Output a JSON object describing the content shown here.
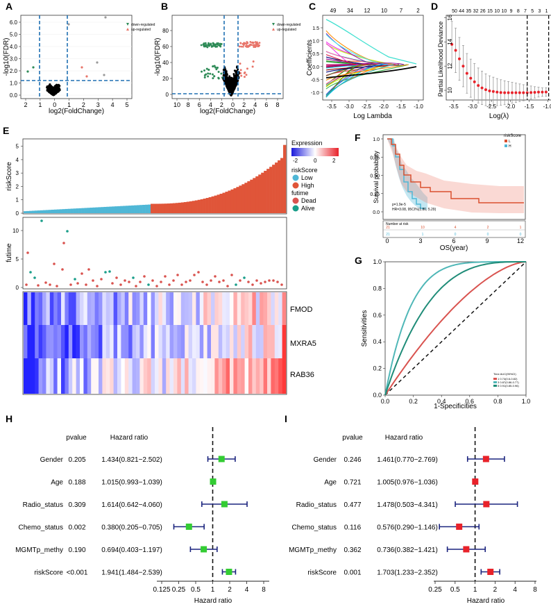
{
  "panels": {
    "A": {
      "label": "A",
      "xlabel": "log2(FoldChange)",
      "ylabel": "-log10(FDR)",
      "xticks": [
        "2",
        "1",
        "0",
        "1",
        "2",
        "3",
        "4",
        "5"
      ],
      "yticks": [
        "0.0",
        "1.0",
        "2.0",
        "3.0",
        "4.0",
        "5.0",
        "6.0"
      ],
      "legend": [
        "down-regulated",
        "up-regulated"
      ],
      "colors": {
        "down": "#2e8b57",
        "up": "#e8756a",
        "ns": "#000000"
      }
    },
    "B": {
      "label": "B",
      "xlabel": "log2(FoldChange)",
      "ylabel": "-log10(FDR)",
      "xticks": [
        "10",
        "8",
        "6",
        "4",
        "2",
        "0",
        "2",
        "4",
        "6",
        "8"
      ],
      "yticks": [
        "0",
        "20",
        "40",
        "60",
        "80"
      ],
      "legend": [
        "down-regulated",
        "up-regulated"
      ]
    },
    "C": {
      "label": "C",
      "xlabel": "Log Lambda",
      "ylabel": "Coefficients",
      "top_ticks": [
        "49",
        "34",
        "12",
        "10",
        "7",
        "2"
      ],
      "xticks": [
        "-3.5",
        "-3.0",
        "-2.5",
        "-2.0",
        "-1.5",
        "-1.0"
      ],
      "yticks": [
        "-1.0",
        "-0.5",
        "0.0",
        "0.5",
        "1.0",
        "1.5"
      ]
    },
    "D": {
      "label": "D",
      "xlabel": "Log(λ)",
      "ylabel": "Partial Likelihood Deviance",
      "top_ticks": [
        "50",
        "44",
        "35",
        "32",
        "26",
        "15",
        "10",
        "10",
        "9",
        "8",
        "7",
        "5",
        "3",
        "1"
      ],
      "xticks": [
        "-3.5",
        "-3.0",
        "-2.5",
        "-2.0",
        "-1.5",
        "-1.0"
      ],
      "yticks": [
        "10",
        "12",
        "14",
        "16"
      ],
      "chart_data": {
        "type": "scatter",
        "x": [
          -3.55,
          -3.45,
          -3.35,
          -3.25,
          -3.15,
          -3.05,
          -2.95,
          -2.85,
          -2.75,
          -2.65,
          -2.55,
          -2.45,
          -2.35,
          -2.25,
          -2.15,
          -2.05,
          -1.95,
          -1.85,
          -1.75,
          -1.65,
          -1.55,
          -1.45,
          -1.35,
          -1.25,
          -1.15,
          -1.05
        ],
        "y": [
          13.8,
          13.3,
          12.6,
          12.0,
          11.4,
          11.0,
          10.7,
          10.4,
          10.2,
          10.05,
          9.95,
          9.9,
          9.85,
          9.82,
          9.8,
          9.8,
          9.8,
          9.8,
          9.8,
          9.8,
          9.8,
          9.82,
          9.83,
          9.85,
          9.85,
          9.86
        ],
        "ylim": [
          9.2,
          16.2
        ],
        "xlim": [
          -3.7,
          -0.9
        ],
        "vlines": [
          -1.55,
          -0.98
        ]
      }
    },
    "E": {
      "label": "E",
      "risk_ylabel": "riskScore",
      "risk_yticks": [
        "0",
        "1",
        "2",
        "3",
        "4",
        "5"
      ],
      "fut_ylabel": "futime",
      "fut_yticks": [
        "0",
        "5",
        "10"
      ],
      "legend_expression_title": "Expression",
      "legend_expression_ticks": [
        "-2",
        "0",
        "2"
      ],
      "legend_risk_title": "riskScore",
      "legend_risk_items": [
        "Low",
        "High"
      ],
      "legend_fut_title": "futime",
      "legend_fut_items": [
        "Dead",
        "Alive"
      ],
      "genes": [
        "FMOD",
        "MXRA5",
        "RAB36"
      ],
      "colors": {
        "low": "#4fb7d6",
        "high": "#e05539",
        "dead": "#d9534f",
        "alive": "#1a9e8a"
      }
    },
    "F": {
      "label": "F",
      "xlabel": "OS(year)",
      "ylabel": "Survival probability",
      "legend_title": "riskScore",
      "legend_items": [
        "L",
        "H"
      ],
      "pvalue_text": "p=1.9e-5",
      "hr_text": "HR=3.08, 95CI%(1.80, 5.29)",
      "risk_table_title": "Number at risk",
      "risk_numbers_low": [
        "21",
        "10",
        "4",
        "2",
        "1"
      ],
      "risk_numbers_high": [
        "21",
        "1",
        "0",
        "0",
        "0"
      ],
      "xticks": [
        "0",
        "3",
        "6",
        "9",
        "12"
      ],
      "yticks": [
        "0.0",
        "0.25",
        "0.50",
        "0.75",
        "1.0"
      ]
    },
    "G": {
      "label": "G",
      "xlabel": "1-Specificities",
      "ylabel": "Sensitivities",
      "xticks": [
        "0.0",
        "0.2",
        "0.4",
        "0.6",
        "0.8",
        "1.0"
      ],
      "yticks": [
        "0.0",
        "0.2",
        "0.4",
        "0.6",
        "0.8",
        "1.0"
      ],
      "legend_title": "Time AUC(95%CI)",
      "legend_items": [
        "1 0.74(0.6-0.82)",
        "3 0.87(0.86-0.77)",
        "5 0.91(0.85-0.96)"
      ],
      "chart_data": {
        "type": "line",
        "series": [
          {
            "name": "1-year",
            "color": "#d9534f",
            "k": 1.6
          },
          {
            "name": "3-year",
            "color": "#4fb7b7",
            "k": 5.5
          },
          {
            "name": "5-year",
            "color": "#1f8c78",
            "k": 3.2
          }
        ],
        "xlim": [
          0,
          1
        ],
        "ylim": [
          0,
          1
        ]
      }
    },
    "H": {
      "label": "H",
      "header_pvalue": "pvalue",
      "header_hr": "Hazard ratio",
      "xlabel": "Hazard ratio",
      "xticks": [
        "0.125",
        "0.25",
        "0.5",
        "1",
        "2",
        "4",
        "8"
      ],
      "chart_data": {
        "type": "forest",
        "rows": [
          {
            "name": "Gender",
            "pvalue": "0.205",
            "hr_text": "1.434(0.821−2.502)",
            "hr": 1.434,
            "lo": 0.821,
            "hi": 2.502
          },
          {
            "name": "Age",
            "pvalue": "0.188",
            "hr_text": "1.015(0.993−1.039)",
            "hr": 1.015,
            "lo": 0.993,
            "hi": 1.039
          },
          {
            "name": "Radio_status",
            "pvalue": "0.309",
            "hr_text": "1.614(0.642−4.060)",
            "hr": 1.614,
            "lo": 0.642,
            "hi": 4.06
          },
          {
            "name": "Chemo_status",
            "pvalue": "0.002",
            "hr_text": "0.380(0.205−0.705)",
            "hr": 0.38,
            "lo": 0.205,
            "hi": 0.705
          },
          {
            "name": "MGMTp_methy",
            "pvalue": "0.190",
            "hr_text": "0.694(0.403−1.197)",
            "hr": 0.694,
            "lo": 0.403,
            "hi": 1.197
          },
          {
            "name": "riskScore",
            "pvalue": "<0.001",
            "hr_text": "1.941(1.484−2.539)",
            "hr": 1.941,
            "lo": 1.484,
            "hi": 2.539
          }
        ],
        "xlim": [
          0.125,
          8
        ],
        "marker_color": "#33cc33"
      }
    },
    "I": {
      "label": "I",
      "header_pvalue": "pvalue",
      "header_hr": "Hazard ratio",
      "xlabel": "Hazard ratio",
      "xticks": [
        "0.25",
        "0.5",
        "1",
        "2",
        "4",
        "8"
      ],
      "chart_data": {
        "type": "forest",
        "rows": [
          {
            "name": "Gender",
            "pvalue": "0.246",
            "hr_text": "1.461(0.770−2.769)",
            "hr": 1.461,
            "lo": 0.77,
            "hi": 2.769
          },
          {
            "name": "Age",
            "pvalue": "0.721",
            "hr_text": "1.005(0.976−1.036)",
            "hr": 1.005,
            "lo": 0.976,
            "hi": 1.036
          },
          {
            "name": "Radio_status",
            "pvalue": "0.477",
            "hr_text": "1.478(0.503−4.341)",
            "hr": 1.478,
            "lo": 0.503,
            "hi": 4.341
          },
          {
            "name": "Chemo_status",
            "pvalue": "0.116",
            "hr_text": "0.576(0.290−1.146)",
            "hr": 0.576,
            "lo": 0.29,
            "hi": 1.146
          },
          {
            "name": "MGMTp_methy",
            "pvalue": "0.362",
            "hr_text": "0.736(0.382−1.421)",
            "hr": 0.736,
            "lo": 0.382,
            "hi": 1.421
          },
          {
            "name": "riskScore",
            "pvalue": "0.001",
            "hr_text": "1.703(1.233−2.352)",
            "hr": 1.703,
            "lo": 1.233,
            "hi": 2.352
          }
        ],
        "xlim": [
          0.25,
          8
        ],
        "marker_color": "#e8222a"
      }
    }
  }
}
